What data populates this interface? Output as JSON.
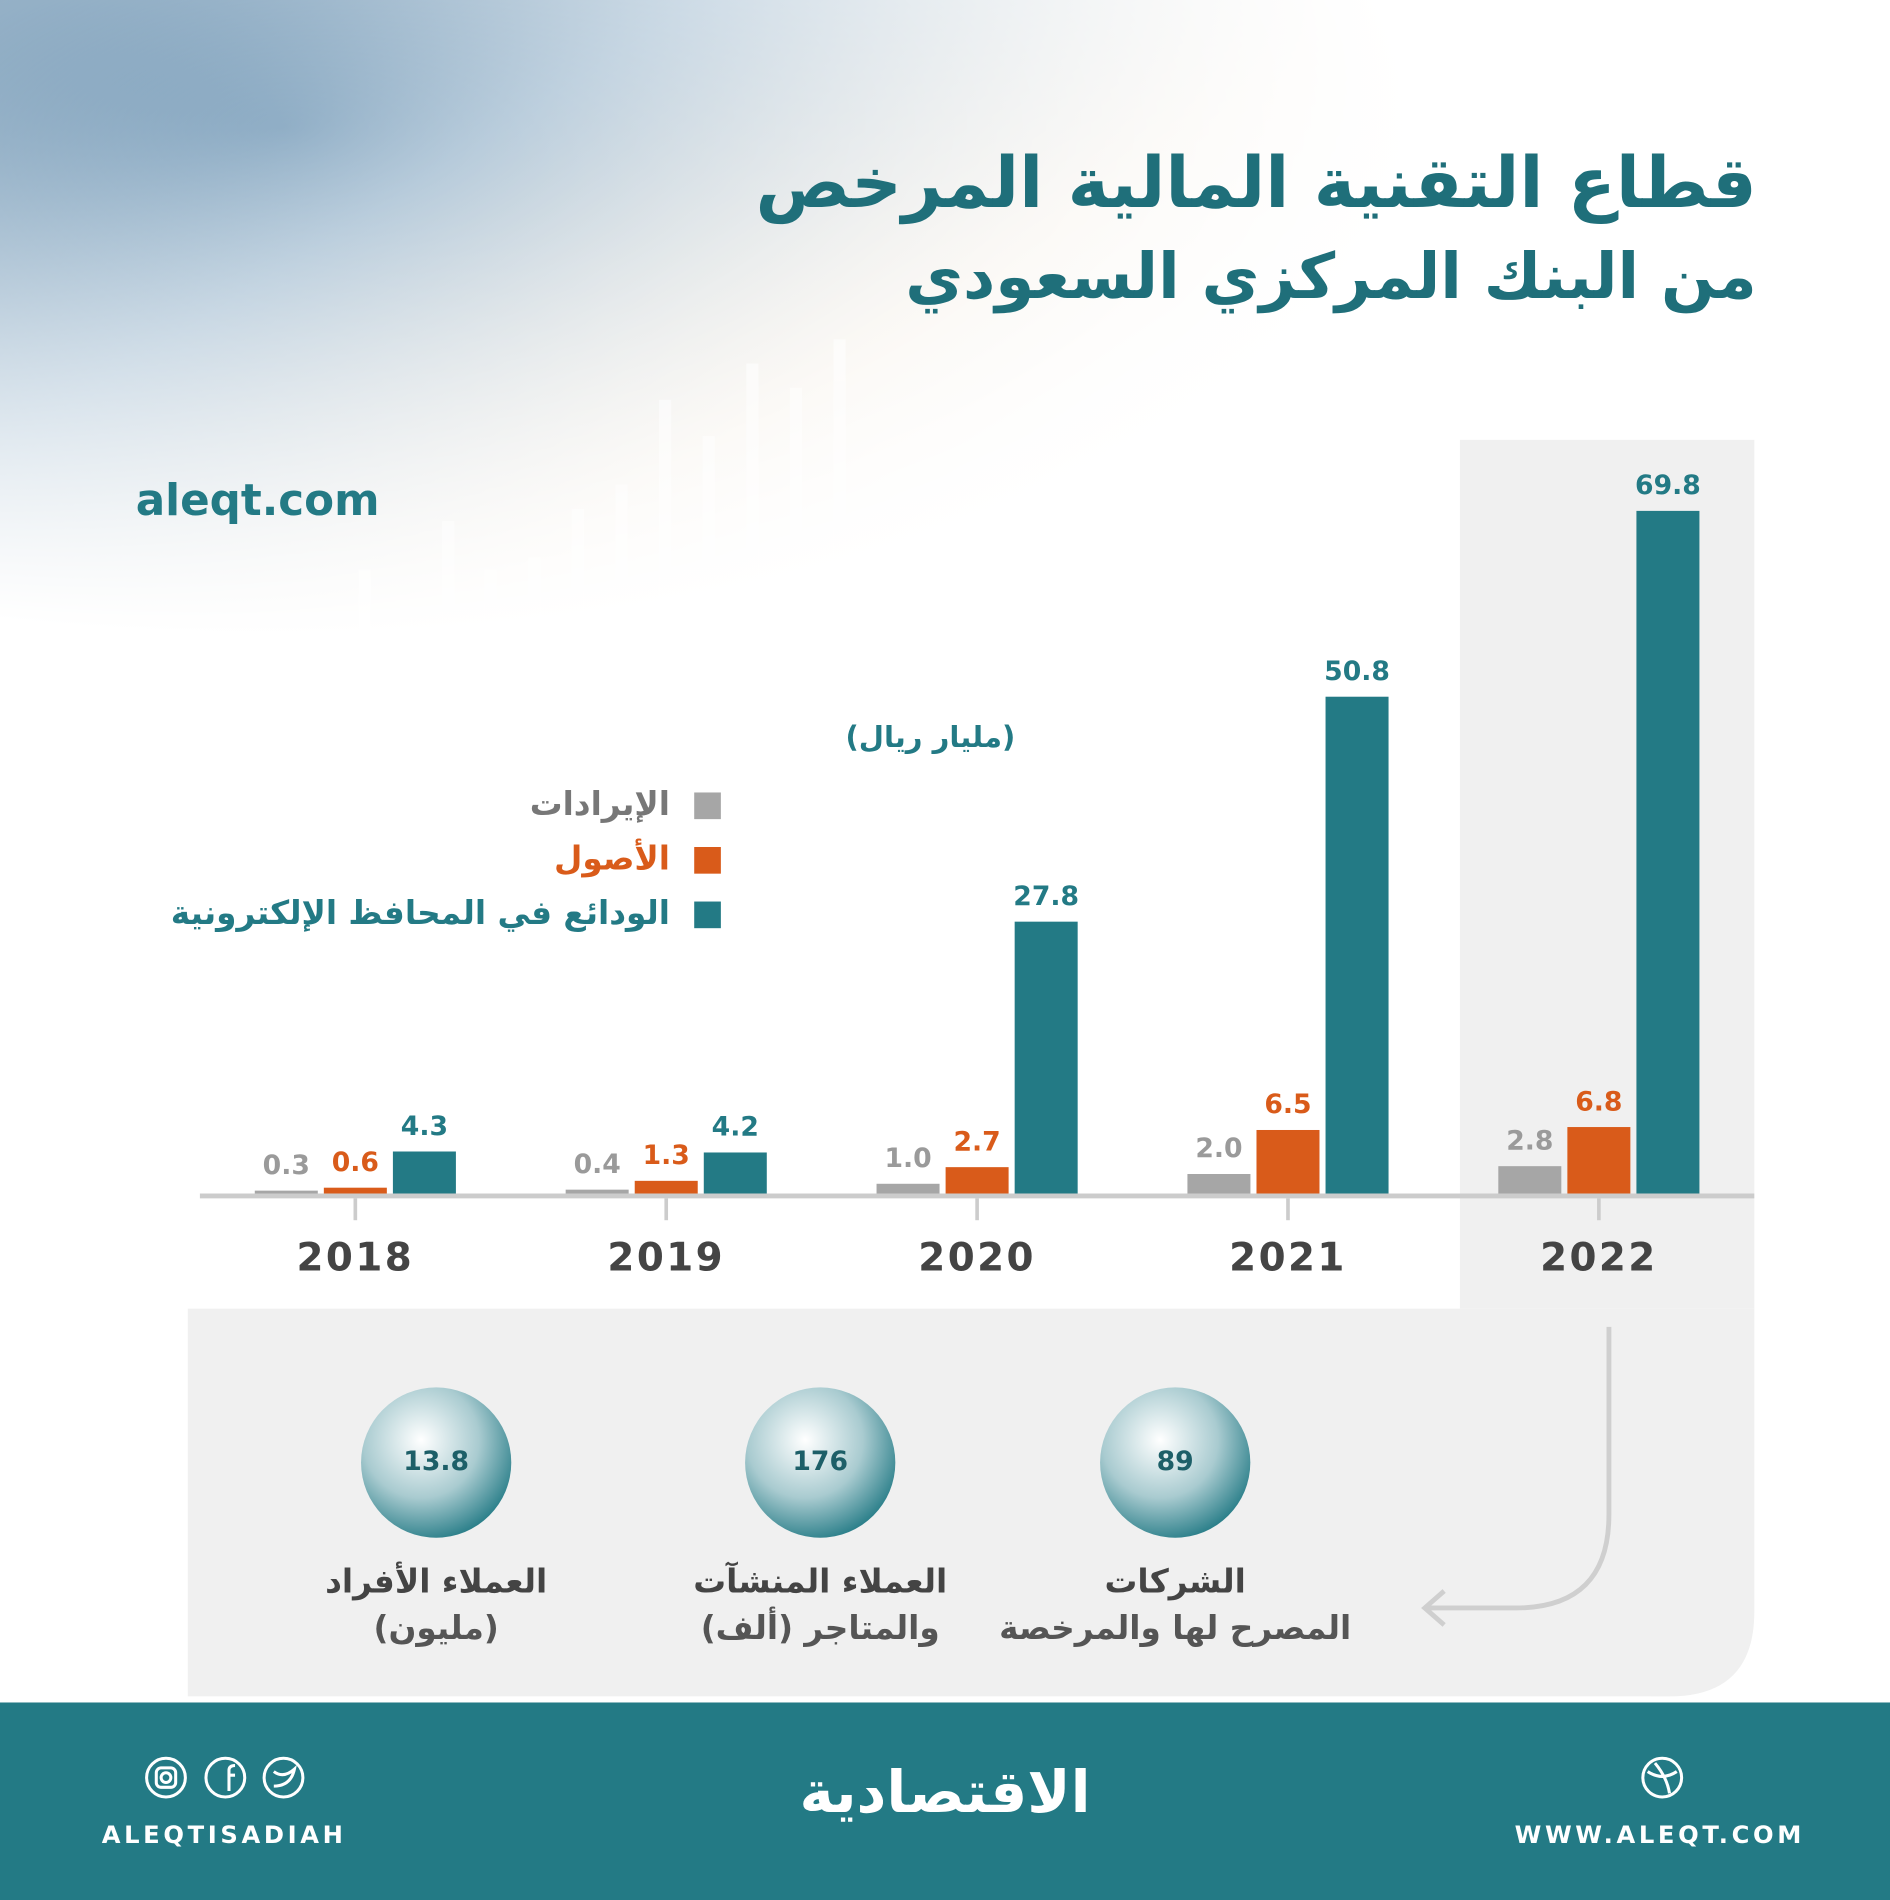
{
  "chart_data": {
    "type": "bar",
    "title": [
      "قطاع التقنية المالية المرخص",
      "من البنك المركزي السعودي"
    ],
    "unit": "(مليار ريال)",
    "categories": [
      "2018",
      "2019",
      "2020",
      "2021",
      "2022"
    ],
    "series": [
      {
        "name": "الإيرادات",
        "color": "#a6a6a6",
        "label_color": "#9a9a9a",
        "values": [
          0.3,
          0.4,
          1.0,
          2.0,
          2.8
        ],
        "value_labels": [
          "0.3",
          "0.4",
          "1.0",
          "2.0",
          "2.8"
        ]
      },
      {
        "name": "الأصول",
        "color": "#d95b1a",
        "label_color": "#d95b1a",
        "values": [
          0.6,
          1.3,
          2.7,
          6.5,
          6.8
        ]
      },
      {
        "name": "الودائع في المحافظ الإلكترونية",
        "color": "#237a85",
        "label_color": "#237a85",
        "values": [
          4.3,
          4.2,
          27.8,
          50.8,
          69.8
        ]
      }
    ],
    "ylim": [
      0,
      70
    ]
  },
  "source": "aleqt.com",
  "stats": [
    {
      "value": 13.8,
      "label": [
        "العملاء الأفراد",
        "(مليون)"
      ]
    },
    {
      "value": 176,
      "label": [
        "العملاء المنشآت",
        "والمتاجر (ألف)"
      ]
    },
    {
      "value": 89,
      "label": [
        "الشركات",
        "المصرح لها والمرخصة"
      ]
    }
  ],
  "footer": {
    "logo": "الاقتصادية",
    "handle": "ALEQTISADIAH",
    "website": "WWW.ALEQT.COM"
  }
}
